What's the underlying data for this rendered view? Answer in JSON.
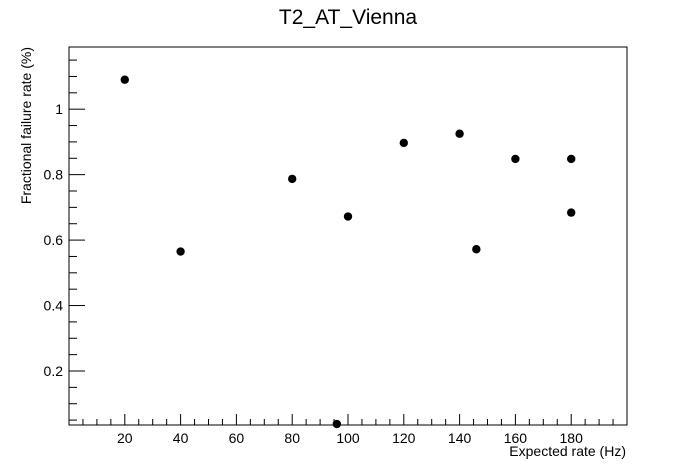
{
  "chart_data": {
    "type": "scatter",
    "title": "T2_AT_Vienna",
    "xlabel": "Expected rate (Hz)",
    "ylabel": "Fractional failure rate (%)",
    "xlim": [
      0,
      200
    ],
    "ylim": [
      0.035,
      1.19
    ],
    "grid": false,
    "x_ticks": [
      20,
      40,
      60,
      80,
      100,
      120,
      140,
      160,
      180
    ],
    "y_ticks": [
      0.2,
      0.4,
      0.6,
      0.8,
      1
    ],
    "marker_color": "#000000",
    "points": [
      {
        "x": 20,
        "y": 1.09
      },
      {
        "x": 40,
        "y": 0.565
      },
      {
        "x": 80,
        "y": 0.787
      },
      {
        "x": 96,
        "y": 0.038
      },
      {
        "x": 100,
        "y": 0.672
      },
      {
        "x": 120,
        "y": 0.897
      },
      {
        "x": 140,
        "y": 0.925
      },
      {
        "x": 146,
        "y": 0.572
      },
      {
        "x": 160,
        "y": 0.848
      },
      {
        "x": 180,
        "y": 0.848
      },
      {
        "x": 180,
        "y": 0.684
      }
    ]
  }
}
